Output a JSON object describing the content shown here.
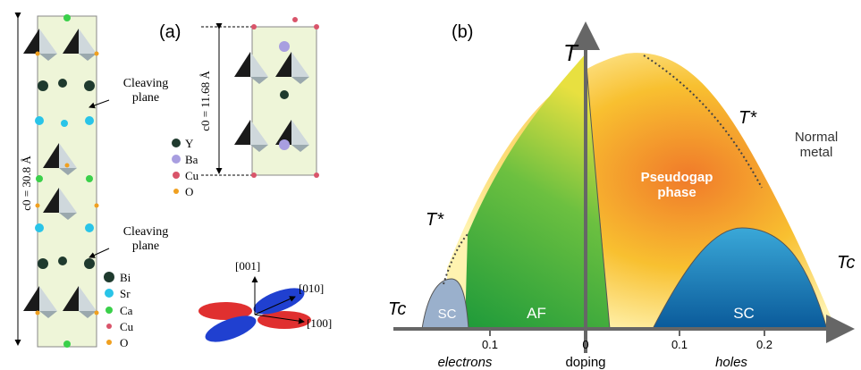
{
  "panel_a": {
    "label": "(a)",
    "cleaving_plane": [
      "Cleaving plane",
      "Cleaving plane"
    ],
    "c0_bi2212": "c0 = 30.8 Å",
    "c0_ybco": "c0 = 11.68 Å",
    "legend_ybco": [
      "Y",
      "Ba",
      "Cu",
      "O"
    ],
    "legend_bi2212": [
      "Bi",
      "Sr",
      "Ca",
      "Cu",
      "O"
    ],
    "directions": [
      "[001]",
      "[010]",
      "[100]"
    ]
  },
  "panel_b": {
    "label": "(b)",
    "temperature_axis": "T",
    "t_star": [
      "T*",
      "T*"
    ],
    "normal_metal": "Normal metal",
    "pseudogap": "Pseudogap phase",
    "af": "AF",
    "sc": [
      "SC",
      "SC"
    ],
    "tc": [
      "Tc",
      "Tc"
    ],
    "ticks": [
      "0.1",
      "0",
      "0.1",
      "0.2"
    ],
    "electrons": "electrons",
    "doping": "doping",
    "holes": "holes"
  }
}
